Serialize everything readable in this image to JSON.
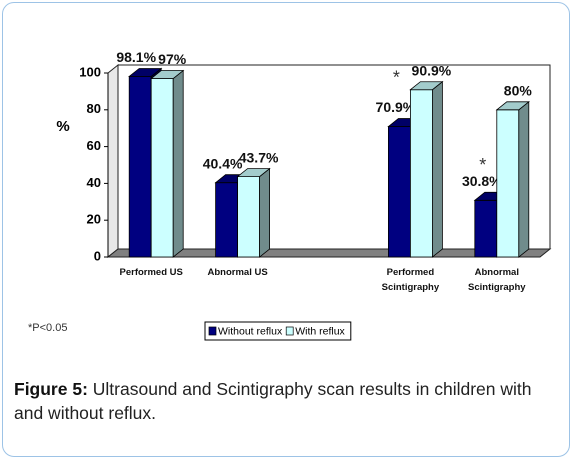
{
  "chart_data": {
    "type": "bar3d",
    "y_label": "%",
    "categories": [
      "Performed US",
      "Abnormal US",
      null,
      "Performed Scintigraphy",
      "Abnormal Scintigraphy"
    ],
    "series": [
      {
        "name": "Without reflux",
        "color": "#000080",
        "values": [
          98.1,
          40.4,
          null,
          70.9,
          30.8
        ],
        "value_labels": [
          "98.1%",
          "40.4%",
          null,
          "70.9%",
          "30.8%"
        ]
      },
      {
        "name": "With reflux",
        "color": "#ccffff",
        "values": [
          97,
          43.7,
          null,
          90.9,
          80
        ],
        "value_labels": [
          "97%",
          "43.7%",
          null,
          "90.9%",
          "80%"
        ]
      }
    ],
    "ylim": [
      0,
      100
    ],
    "yticks": [
      0,
      20,
      40,
      60,
      80,
      100
    ],
    "annotations": [
      "*",
      "*"
    ],
    "footnote": "*P<0.05",
    "caption_label": "Figure 5:",
    "caption_text": "Ultrasound and Scintigraphy scan results in children with and without reflux."
  }
}
